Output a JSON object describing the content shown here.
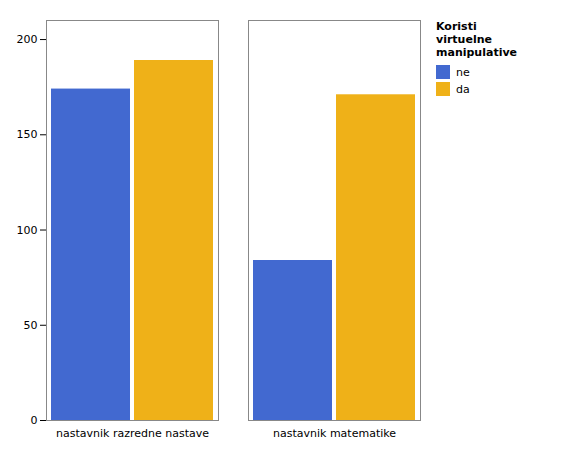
{
  "chart_data": {
    "type": "bar",
    "categories": [
      "nastavnik razredne nastave",
      "nastavnik matematike"
    ],
    "series": [
      {
        "name": "ne",
        "values": [
          174,
          84
        ]
      },
      {
        "name": "da",
        "values": [
          189,
          171
        ]
      }
    ],
    "legend_title": "Koristi\nvirtuelne\nmanipulative",
    "legend": "right",
    "ylim": [
      0,
      210
    ],
    "yticks": [
      0,
      50,
      100,
      150,
      200
    ],
    "grid": false
  }
}
